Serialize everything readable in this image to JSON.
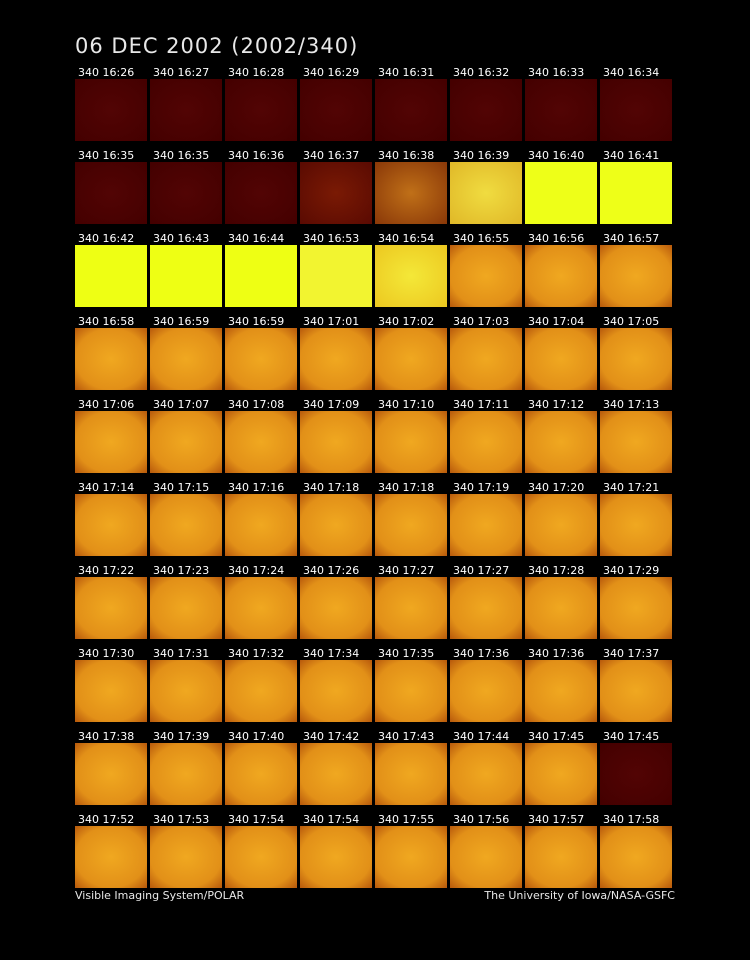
{
  "title": "06 DEC 2002  (2002/340)",
  "frames": [
    [
      "340 16:26",
      "340 16:27",
      "340 16:28",
      "340 16:29",
      "340 16:31",
      "340 16:32",
      "340 16:33",
      "340 16:34"
    ],
    [
      "340 16:35",
      "340 16:35",
      "340 16:36",
      "340 16:37",
      "340 16:38",
      "340 16:39",
      "340 16:40",
      "340 16:41"
    ],
    [
      "340 16:42",
      "340 16:43",
      "340 16:44",
      "340 16:53",
      "340 16:54",
      "340 16:55",
      "340 16:56",
      "340 16:57"
    ],
    [
      "340 16:58",
      "340 16:59",
      "340 16:59",
      "340 17:01",
      "340 17:02",
      "340 17:03",
      "340 17:04",
      "340 17:05"
    ],
    [
      "340 17:06",
      "340 17:07",
      "340 17:08",
      "340 17:09",
      "340 17:10",
      "340 17:11",
      "340 17:12",
      "340 17:13"
    ],
    [
      "340 17:14",
      "340 17:15",
      "340 17:16",
      "340 17:18",
      "340 17:18",
      "340 17:19",
      "340 17:20",
      "340 17:21"
    ],
    [
      "340 17:22",
      "340 17:23",
      "340 17:24",
      "340 17:26",
      "340 17:27",
      "340 17:27",
      "340 17:28",
      "340 17:29"
    ],
    [
      "340 17:30",
      "340 17:31",
      "340 17:32",
      "340 17:34",
      "340 17:35",
      "340 17:36",
      "340 17:36",
      "340 17:37"
    ],
    [
      "340 17:38",
      "340 17:39",
      "340 17:40",
      "340 17:42",
      "340 17:43",
      "340 17:44",
      "340 17:45",
      "340 17:45"
    ],
    [
      "340 17:52",
      "340 17:53",
      "340 17:54",
      "340 17:54",
      "340 17:55",
      "340 17:56",
      "340 17:57",
      "340 17:58"
    ]
  ],
  "footer": {
    "left": "Visible Imaging System/POLAR",
    "right": "The University of Iowa/NASA-GSFC"
  }
}
